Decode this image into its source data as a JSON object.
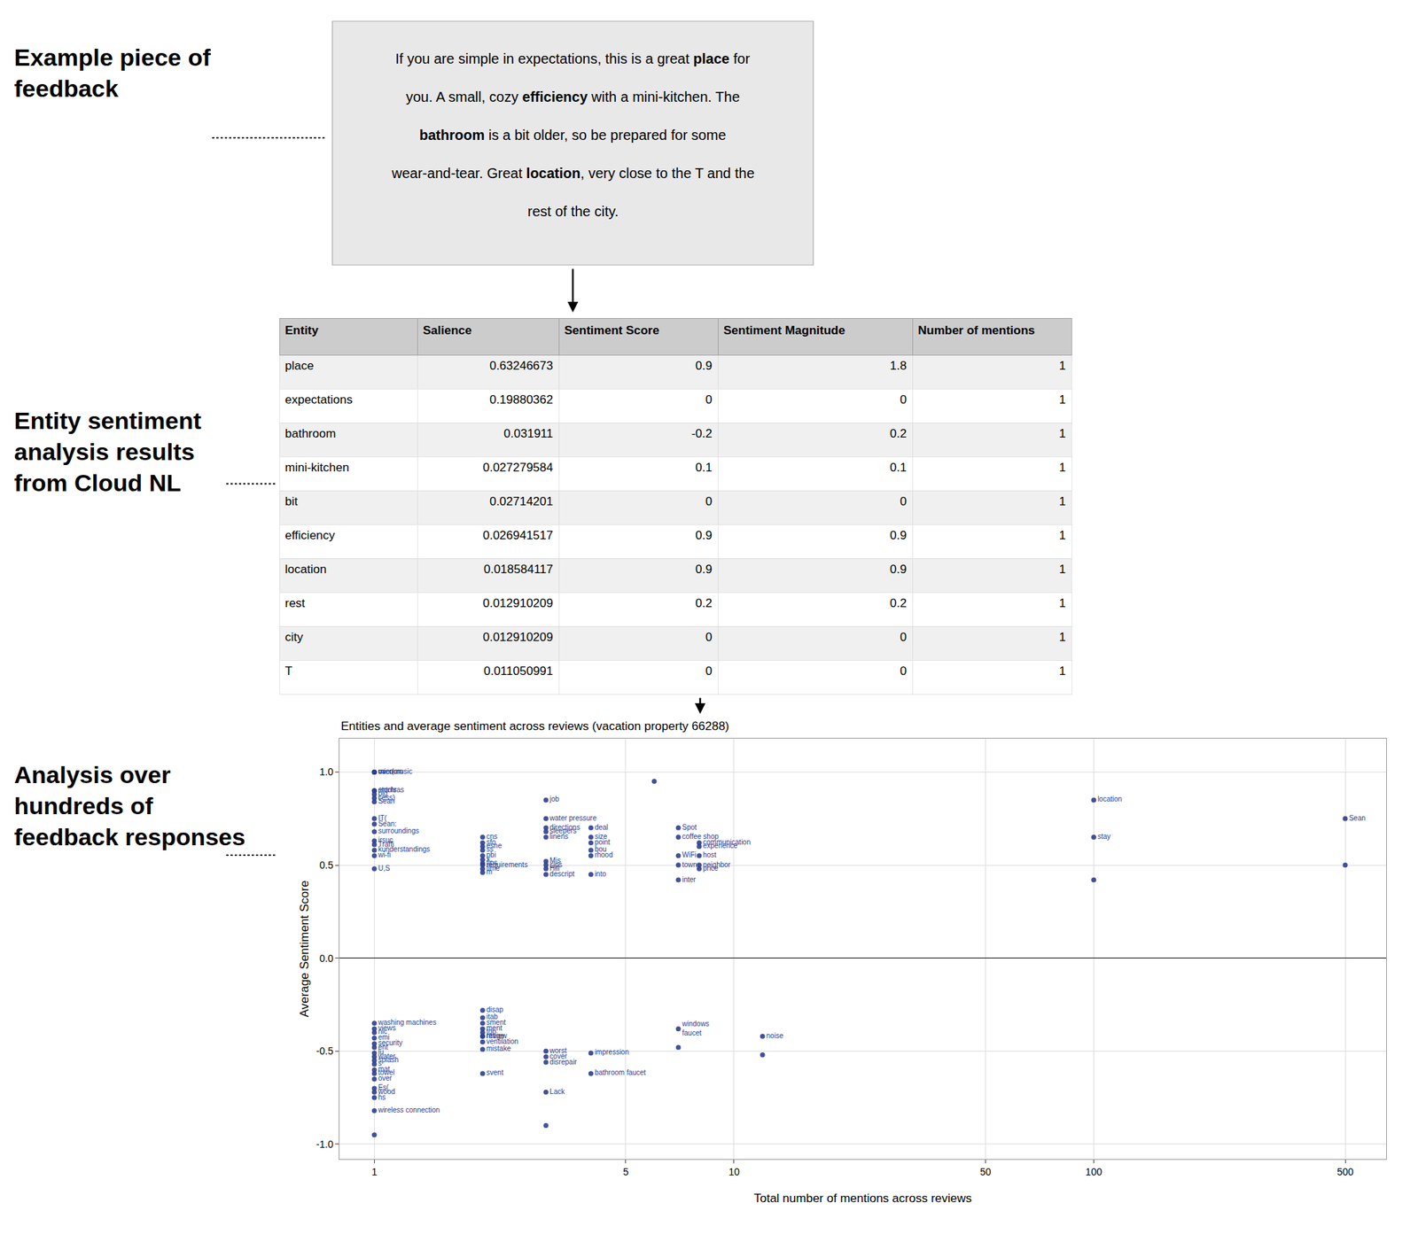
{
  "chart_data": [
    {
      "type": "text",
      "title": "Example piece of\nfeedback",
      "color": "#e8e8e8",
      "annotations": [
        [
          {
            "text": "If you are simple in expectations, this is a great ",
            "bold": false
          },
          {
            "text": "place",
            "bold": true
          },
          {
            "text": " for",
            "bold": false
          }
        ],
        [
          {
            "text": "you. A small, cozy ",
            "bold": false
          },
          {
            "text": "efficiency",
            "bold": true
          },
          {
            "text": " with a mini-kitchen. The",
            "bold": false
          }
        ],
        [
          {
            "text": "bathroom",
            "bold": true
          },
          {
            "text": " is a bit older, so be prepared for some",
            "bold": false
          }
        ],
        [
          {
            "text": "wear-and-tear. Great ",
            "bold": false
          },
          {
            "text": "location",
            "bold": true
          },
          {
            "text": ", very close to the T and the",
            "bold": false
          }
        ],
        [
          {
            "text": "rest of the city.",
            "bold": false
          }
        ]
      ]
    },
    {
      "type": "table",
      "title": "Entity sentiment\nanalysis results\nfrom Cloud NL",
      "xlabel": "Entity",
      "categories": [
        "place",
        "expectations",
        "bathroom",
        "mini-kitchen",
        "bit",
        "efficiency",
        "location",
        "rest",
        "city",
        "T"
      ],
      "series": [
        {
          "name": "Salience",
          "values": [
            0.63246673,
            0.19880362,
            0.031911,
            0.027279584,
            0.02714201,
            0.026941517,
            0.018584117,
            0.012910209,
            0.012910209,
            0.011050991
          ]
        },
        {
          "name": "Sentiment Score",
          "values": [
            0.9,
            0,
            -0.2,
            0.1,
            0,
            0.9,
            0.9,
            0.2,
            0,
            0
          ]
        },
        {
          "name": "Sentiment Magnitude",
          "values": [
            1.8,
            0,
            0.2,
            0.1,
            0,
            0.9,
            0.9,
            0.2,
            0,
            0
          ]
        },
        {
          "name": "Number of mentions",
          "values": [
            1,
            1,
            1,
            1,
            1,
            1,
            1,
            1,
            1,
            1
          ]
        }
      ]
    },
    {
      "type": "scatter",
      "annotations": [
        "Analysis over\nhundreds of\nfeedback responses"
      ],
      "title": "Entities and average sentiment across reviews (vacation property 66288)",
      "xlabel": "Total number of mentions across reviews",
      "ylabel": "Average Sentiment Score",
      "color": "#2c3e8c",
      "log": "x",
      "grid": true,
      "xlim": [
        0.8,
        650
      ],
      "xticks": [
        1,
        5,
        10,
        50,
        100,
        500
      ],
      "ylim": [
        -1.08,
        1.18
      ],
      "yticks": [
        {
          "value": -1.0,
          "label": "-1.0"
        },
        -0.5,
        {
          "value": 0.0,
          "label": "0.0"
        },
        0.5,
        {
          "value": 1.0,
          "label": "1.0"
        }
      ],
      "x": [
        1,
        1,
        1,
        1,
        1,
        1,
        1,
        1,
        1,
        1,
        1,
        1,
        1,
        1,
        1,
        1,
        2,
        2,
        2,
        2,
        2,
        2,
        2,
        2,
        2,
        2,
        3,
        3,
        3,
        3,
        3,
        3,
        3,
        3,
        3,
        4,
        4,
        4,
        4,
        4,
        4,
        6,
        7,
        7,
        7,
        7,
        7,
        8,
        8,
        8,
        8,
        8,
        100,
        100,
        100,
        500,
        500,
        2,
        2,
        2,
        2,
        2,
        1,
        1,
        1,
        2,
        2,
        1,
        1,
        1,
        2,
        2,
        1,
        1,
        1,
        1,
        3,
        3,
        3,
        4,
        1,
        1,
        1,
        2,
        4,
        1,
        1,
        1,
        3,
        1,
        3,
        1,
        7,
        7,
        12,
        12
      ],
      "values": [
        1.0,
        1.0,
        1.0,
        0.9,
        0.9,
        0.88,
        0.86,
        0.84,
        0.75,
        0.72,
        0.68,
        0.63,
        0.61,
        0.58,
        0.55,
        0.48,
        0.65,
        0.62,
        0.6,
        0.58,
        0.55,
        0.53,
        0.51,
        0.5,
        0.48,
        0.46,
        0.85,
        0.75,
        0.7,
        0.68,
        0.65,
        0.52,
        0.5,
        0.48,
        0.45,
        0.7,
        0.65,
        0.62,
        0.58,
        0.55,
        0.45,
        0.95,
        0.7,
        0.65,
        0.55,
        0.5,
        0.42,
        0.62,
        0.6,
        0.55,
        0.5,
        0.48,
        0.85,
        0.65,
        0.42,
        0.75,
        0.5,
        -0.28,
        -0.32,
        -0.35,
        -0.38,
        -0.42,
        -0.35,
        -0.38,
        -0.4,
        -0.4,
        -0.42,
        -0.43,
        -0.46,
        -0.48,
        -0.45,
        -0.49,
        -0.51,
        -0.53,
        -0.55,
        -0.57,
        -0.5,
        -0.53,
        -0.56,
        -0.51,
        -0.6,
        -0.62,
        -0.65,
        -0.62,
        -0.62,
        -0.7,
        -0.72,
        -0.75,
        -0.72,
        -0.82,
        -0.9,
        -0.95,
        -0.38,
        -0.48,
        -0.42,
        -0.52
      ],
      "labels": [
        "micr(music",
        "oven",
        "vacuum",
        "entrhras",
        "stools",
        "pig",
        "cess)",
        "Sean",
        "IT(",
        "Sean:",
        "surroundings",
        "irsuc",
        "Traffi",
        "kunderstandings",
        "wi-fi",
        "U,S",
        "cns",
        "sfo",
        "esne",
        "ss",
        "pbi",
        "x,",
        "tips",
        "requirements",
        "time",
        "m",
        "job",
        "water pressure",
        "directions",
        "sleepers",
        "linens",
        "Mis",
        "sips",
        "Hill",
        "descript",
        "deal",
        "size",
        "point",
        "bou",
        "rhood",
        "into",
        null,
        "Spot",
        "coffee shop",
        "WiFi",
        "town",
        "inter",
        "communication",
        "experience",
        "host",
        "neighbor",
        "price",
        "location",
        "stay",
        null,
        "Sean",
        null,
        "disap",
        "itab",
        "sment",
        "ment",
        "ntage",
        "washing machines",
        "views",
        "nic",
        "top",
        "review",
        "emi",
        "security",
        "ent",
        "ventilation",
        "mistake",
        "lu",
        "water",
        "splash",
        "s",
        "worst",
        "cover",
        "disrepair",
        "impression",
        "mat",
        "towel",
        "over",
        "svent",
        "bathroom faucet",
        "Es(",
        "wood",
        "hs",
        "Lack",
        "wireless connection",
        null,
        null,
        "windows\nfaucet",
        null,
        "noise",
        null
      ]
    }
  ]
}
